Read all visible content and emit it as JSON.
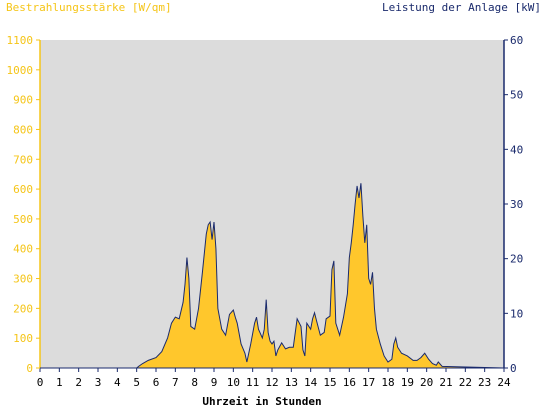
{
  "chart_data": {
    "type": "area",
    "left_axis_label": "Bestrahlungsstärke [W/qm]",
    "right_axis_label": "Leistung der Anlage [kW]",
    "xlabel": "Uhrzeit in Stunden",
    "x_ticks": [
      "0",
      "1",
      "2",
      "3",
      "4",
      "5",
      "6",
      "7",
      "8",
      "9",
      "10",
      "11",
      "12",
      "13",
      "14",
      "15",
      "16",
      "17",
      "18",
      "19",
      "20",
      "21",
      "22",
      "23",
      "24"
    ],
    "y_left_ticks": [
      "0",
      "100",
      "200",
      "300",
      "400",
      "500",
      "600",
      "700",
      "800",
      "900",
      "1000",
      "1100"
    ],
    "y_right_ticks": [
      "0",
      "10",
      "20",
      "30",
      "40",
      "50",
      "60"
    ],
    "xlim": [
      0,
      24
    ],
    "ylim_left": [
      0,
      1100
    ],
    "ylim_right": [
      0,
      60
    ],
    "grid": false,
    "colors": {
      "irradiance_fill": "#ffc72c",
      "power_line": "#1a2a6c",
      "plot_bg": "#dcdcdc",
      "left_axis": "#f5c518",
      "right_axis": "#1a2a6c"
    },
    "series": [
      {
        "name": "",
        "axis": "left",
        "x": [
          0,
          5,
          5.1,
          5.3,
          5.6,
          6,
          6.3,
          6.6,
          6.8,
          7,
          7.2,
          7.4,
          7.5,
          7.6,
          7.7,
          7.8,
          8,
          8.2,
          8.4,
          8.6,
          8.7,
          8.8,
          8.9,
          9,
          9.1,
          9.2,
          9.4,
          9.6,
          9.8,
          10,
          10.1,
          10.2,
          10.4,
          10.6,
          10.7,
          10.9,
          11.1,
          11.2,
          11.3,
          11.5,
          11.6,
          11.7,
          11.8,
          11.9,
          12,
          12.1,
          12.2,
          12.3,
          12.5,
          12.7,
          12.9,
          13.1,
          13.3,
          13.5,
          13.6,
          13.7,
          13.8,
          14,
          14.1,
          14.2,
          14.3,
          14.5,
          14.7,
          14.8,
          15,
          15.1,
          15.2,
          15.3,
          15.5,
          15.7,
          15.9,
          16,
          16.1,
          16.2,
          16.3,
          16.4,
          16.5,
          16.6,
          16.7,
          16.8,
          16.9,
          17,
          17.1,
          17.2,
          17.3,
          17.4,
          17.6,
          17.8,
          18,
          18.2,
          18.3,
          18.4,
          18.5,
          18.7,
          19,
          19.3,
          19.5,
          19.7,
          19.9,
          20.1,
          20.3,
          20.5,
          20.6,
          20.8,
          24
        ],
        "values": [
          0,
          0,
          5,
          15,
          25,
          35,
          55,
          100,
          150,
          170,
          165,
          220,
          280,
          370,
          300,
          140,
          130,
          200,
          320,
          450,
          480,
          490,
          430,
          490,
          400,
          200,
          130,
          110,
          180,
          195,
          170,
          150,
          80,
          50,
          20,
          80,
          150,
          170,
          130,
          100,
          130,
          230,
          120,
          90,
          80,
          90,
          40,
          60,
          85,
          65,
          70,
          70,
          165,
          140,
          60,
          40,
          150,
          130,
          165,
          185,
          160,
          110,
          120,
          165,
          175,
          330,
          360,
          150,
          110,
          170,
          250,
          370,
          420,
          480,
          550,
          610,
          570,
          620,
          510,
          420,
          480,
          300,
          280,
          320,
          200,
          130,
          80,
          40,
          20,
          30,
          80,
          100,
          70,
          50,
          40,
          25,
          25,
          35,
          50,
          30,
          15,
          10,
          20,
          5,
          0
        ]
      },
      {
        "name": "",
        "axis": "right",
        "x": [
          0,
          5,
          5.1,
          5.3,
          5.6,
          6,
          6.3,
          6.6,
          6.8,
          7,
          7.2,
          7.4,
          7.5,
          7.6,
          7.7,
          7.8,
          8,
          8.2,
          8.4,
          8.6,
          8.7,
          8.8,
          8.9,
          9,
          9.1,
          9.2,
          9.4,
          9.6,
          9.8,
          10,
          10.1,
          10.2,
          10.4,
          10.6,
          10.7,
          10.9,
          11.1,
          11.2,
          11.3,
          11.5,
          11.6,
          11.7,
          11.8,
          11.9,
          12,
          12.1,
          12.2,
          12.3,
          12.5,
          12.7,
          12.9,
          13.1,
          13.3,
          13.5,
          13.6,
          13.7,
          13.8,
          14,
          14.1,
          14.2,
          14.3,
          14.5,
          14.7,
          14.8,
          15,
          15.1,
          15.2,
          15.3,
          15.5,
          15.7,
          15.9,
          16,
          16.1,
          16.2,
          16.3,
          16.4,
          16.5,
          16.6,
          16.7,
          16.8,
          16.9,
          17,
          17.1,
          17.2,
          17.3,
          17.4,
          17.6,
          17.8,
          18,
          18.2,
          18.3,
          18.4,
          18.5,
          18.7,
          19,
          19.3,
          19.5,
          19.7,
          19.9,
          20.1,
          20.3,
          20.5,
          20.6,
          20.8,
          24
        ],
        "values": [
          0,
          0,
          0.3,
          0.8,
          1.4,
          1.9,
          3,
          5.5,
          8.2,
          9.3,
          9,
          12,
          15.3,
          20.2,
          16.4,
          7.6,
          7.1,
          10.9,
          17.5,
          24.5,
          26.2,
          26.7,
          23.5,
          26.7,
          21.8,
          10.9,
          7.1,
          6,
          9.8,
          10.6,
          9.3,
          8.2,
          4.4,
          2.7,
          1.1,
          4.4,
          8.2,
          9.3,
          7.1,
          5.5,
          7.1,
          12.5,
          6.5,
          4.9,
          4.4,
          4.9,
          2.2,
          3.3,
          4.6,
          3.5,
          3.8,
          3.8,
          9,
          7.6,
          3.3,
          2.2,
          8.2,
          7.1,
          9,
          10.1,
          8.7,
          6,
          6.5,
          9,
          9.5,
          18,
          19.6,
          8.2,
          6,
          9.3,
          13.6,
          20.2,
          22.9,
          26.2,
          30,
          33.3,
          31.1,
          33.8,
          27.8,
          22.9,
          26.2,
          16.4,
          15.3,
          17.5,
          10.9,
          7.1,
          4.4,
          2.2,
          1.1,
          1.6,
          4.4,
          5.5,
          3.8,
          2.7,
          2.2,
          1.4,
          1.4,
          1.9,
          2.7,
          1.6,
          0.8,
          0.5,
          1.1,
          0.3,
          0
        ]
      }
    ]
  }
}
